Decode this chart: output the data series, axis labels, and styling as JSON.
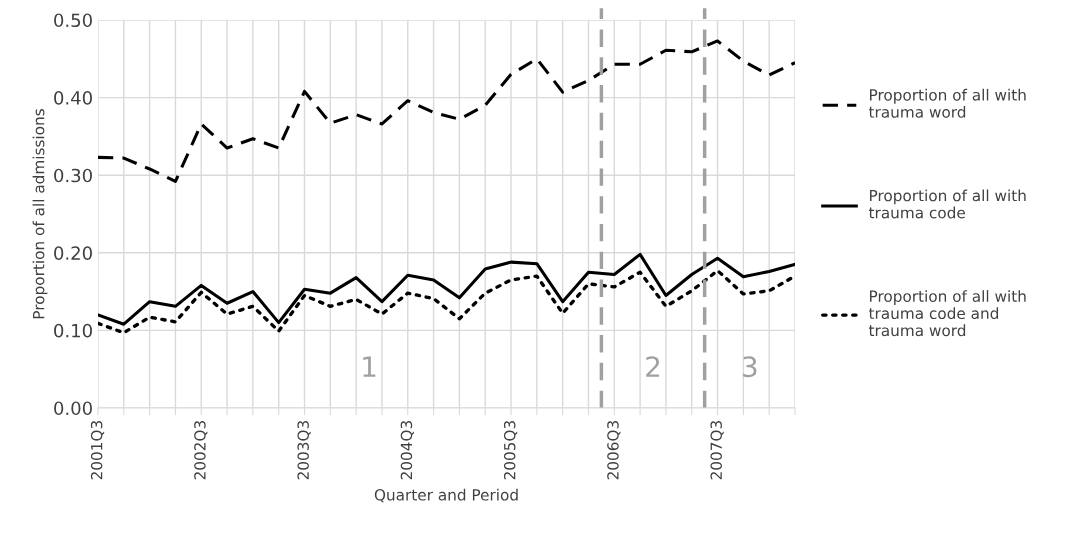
{
  "chart_data": {
    "type": "line",
    "xlabel": "Quarter and Period",
    "ylabel": "Proportion of all admissions",
    "categories": [
      "2001Q3",
      null,
      null,
      null,
      "2002Q3",
      null,
      null,
      null,
      "2003Q3",
      null,
      null,
      null,
      "2004Q3",
      null,
      null,
      null,
      "2005Q3",
      null,
      null,
      null,
      "2006Q3",
      null,
      null,
      null,
      "2007Q3",
      null,
      null,
      null
    ],
    "series": [
      {
        "name": "Proportion of all with\ntrauma word",
        "color": "#000000",
        "line_style": "dashed",
        "values": [
          0.323,
          0.322,
          0.308,
          0.292,
          0.366,
          0.335,
          0.347,
          0.335,
          0.408,
          0.367,
          0.378,
          0.366,
          0.396,
          0.381,
          0.372,
          0.39,
          0.43,
          0.45,
          0.407,
          0.422,
          0.443,
          0.443,
          0.461,
          0.459,
          0.473,
          0.447,
          0.429,
          0.445
        ]
      },
      {
        "name": "Proportion of all with\ntrauma code",
        "color": "#000000",
        "line_style": "solid",
        "values": [
          0.12,
          0.108,
          0.137,
          0.131,
          0.158,
          0.135,
          0.15,
          0.11,
          0.153,
          0.148,
          0.168,
          0.137,
          0.171,
          0.165,
          0.142,
          0.179,
          0.188,
          0.186,
          0.137,
          0.175,
          0.172,
          0.198,
          0.145,
          0.172,
          0.193,
          0.169,
          0.176,
          0.185
        ]
      },
      {
        "name": "Proportion of all with\ntrauma code and\ntrauma word",
        "color": "#000000",
        "line_style": "dotted",
        "values": [
          0.109,
          0.097,
          0.117,
          0.111,
          0.149,
          0.121,
          0.131,
          0.099,
          0.145,
          0.131,
          0.14,
          0.121,
          0.148,
          0.141,
          0.115,
          0.148,
          0.165,
          0.17,
          0.122,
          0.16,
          0.156,
          0.175,
          0.131,
          0.151,
          0.177,
          0.147,
          0.151,
          0.17
        ]
      }
    ],
    "ylim": [
      0,
      0.5
    ],
    "yticks": [
      {
        "value": 0,
        "label": "0.00"
      },
      {
        "value": 0.1,
        "label": "0.10"
      },
      {
        "value": 0.2,
        "label": "0.20"
      },
      {
        "value": 0.3,
        "label": "0.30"
      },
      {
        "value": 0.4,
        "label": "0.40"
      },
      {
        "value": 0.5,
        "label": "0.50"
      }
    ],
    "annotations": [
      "1",
      "2",
      "3"
    ],
    "grid": true,
    "legend": "right",
    "marker": "none"
  }
}
